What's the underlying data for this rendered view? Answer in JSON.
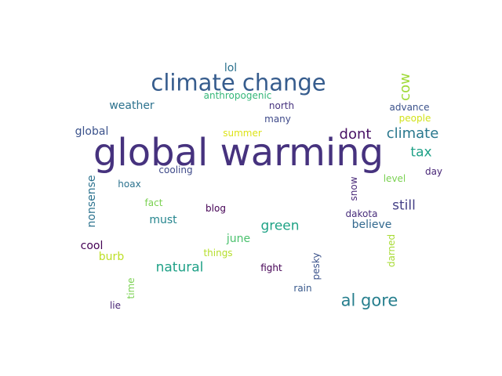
{
  "words": [
    {
      "text": "global warming",
      "color": "#46327e"
    },
    {
      "text": "climate change",
      "color": "#365c8d"
    },
    {
      "text": "al gore",
      "color": "#277f8e"
    },
    {
      "text": "climate",
      "color": "#2a788e"
    },
    {
      "text": "dont",
      "color": "#471164"
    },
    {
      "text": "cow",
      "color": "#a0da39"
    },
    {
      "text": "tax",
      "color": "#1fa187"
    },
    {
      "text": "natural",
      "color": "#1fa187"
    },
    {
      "text": "green",
      "color": "#20a386"
    },
    {
      "text": "still",
      "color": "#433e85"
    },
    {
      "text": "weather",
      "color": "#2c728e"
    },
    {
      "text": "lol",
      "color": "#2c728e"
    },
    {
      "text": "must",
      "color": "#25858e"
    },
    {
      "text": "june",
      "color": "#4ac16d"
    },
    {
      "text": "believe",
      "color": "#31688e"
    },
    {
      "text": "global",
      "color": "#3b528b"
    },
    {
      "text": "nonsense",
      "color": "#2c728e"
    },
    {
      "text": "cool",
      "color": "#440154"
    },
    {
      "text": "burb",
      "color": "#bddf26"
    },
    {
      "text": "anthropogenic",
      "color": "#35b779"
    },
    {
      "text": "north",
      "color": "#46327e"
    },
    {
      "text": "advance",
      "color": "#3b528b"
    },
    {
      "text": "many",
      "color": "#3e4989"
    },
    {
      "text": "people",
      "color": "#d2e21b"
    },
    {
      "text": "summer",
      "color": "#dde318"
    },
    {
      "text": "cooling",
      "color": "#3e4989"
    },
    {
      "text": "day",
      "color": "#482677"
    },
    {
      "text": "hoax",
      "color": "#2c728e"
    },
    {
      "text": "level",
      "color": "#7ad151"
    },
    {
      "text": "snow",
      "color": "#482878"
    },
    {
      "text": "fact",
      "color": "#7ad151"
    },
    {
      "text": "blog",
      "color": "#440154"
    },
    {
      "text": "dakota",
      "color": "#472d7b"
    },
    {
      "text": "things",
      "color": "#b5de2b"
    },
    {
      "text": "darned",
      "color": "#a8db34"
    },
    {
      "text": "pesky",
      "color": "#3b528b"
    },
    {
      "text": "fight",
      "color": "#440154"
    },
    {
      "text": "rain",
      "color": "#38598c"
    },
    {
      "text": "time",
      "color": "#7ad151"
    },
    {
      "text": "lie",
      "color": "#482475"
    }
  ]
}
